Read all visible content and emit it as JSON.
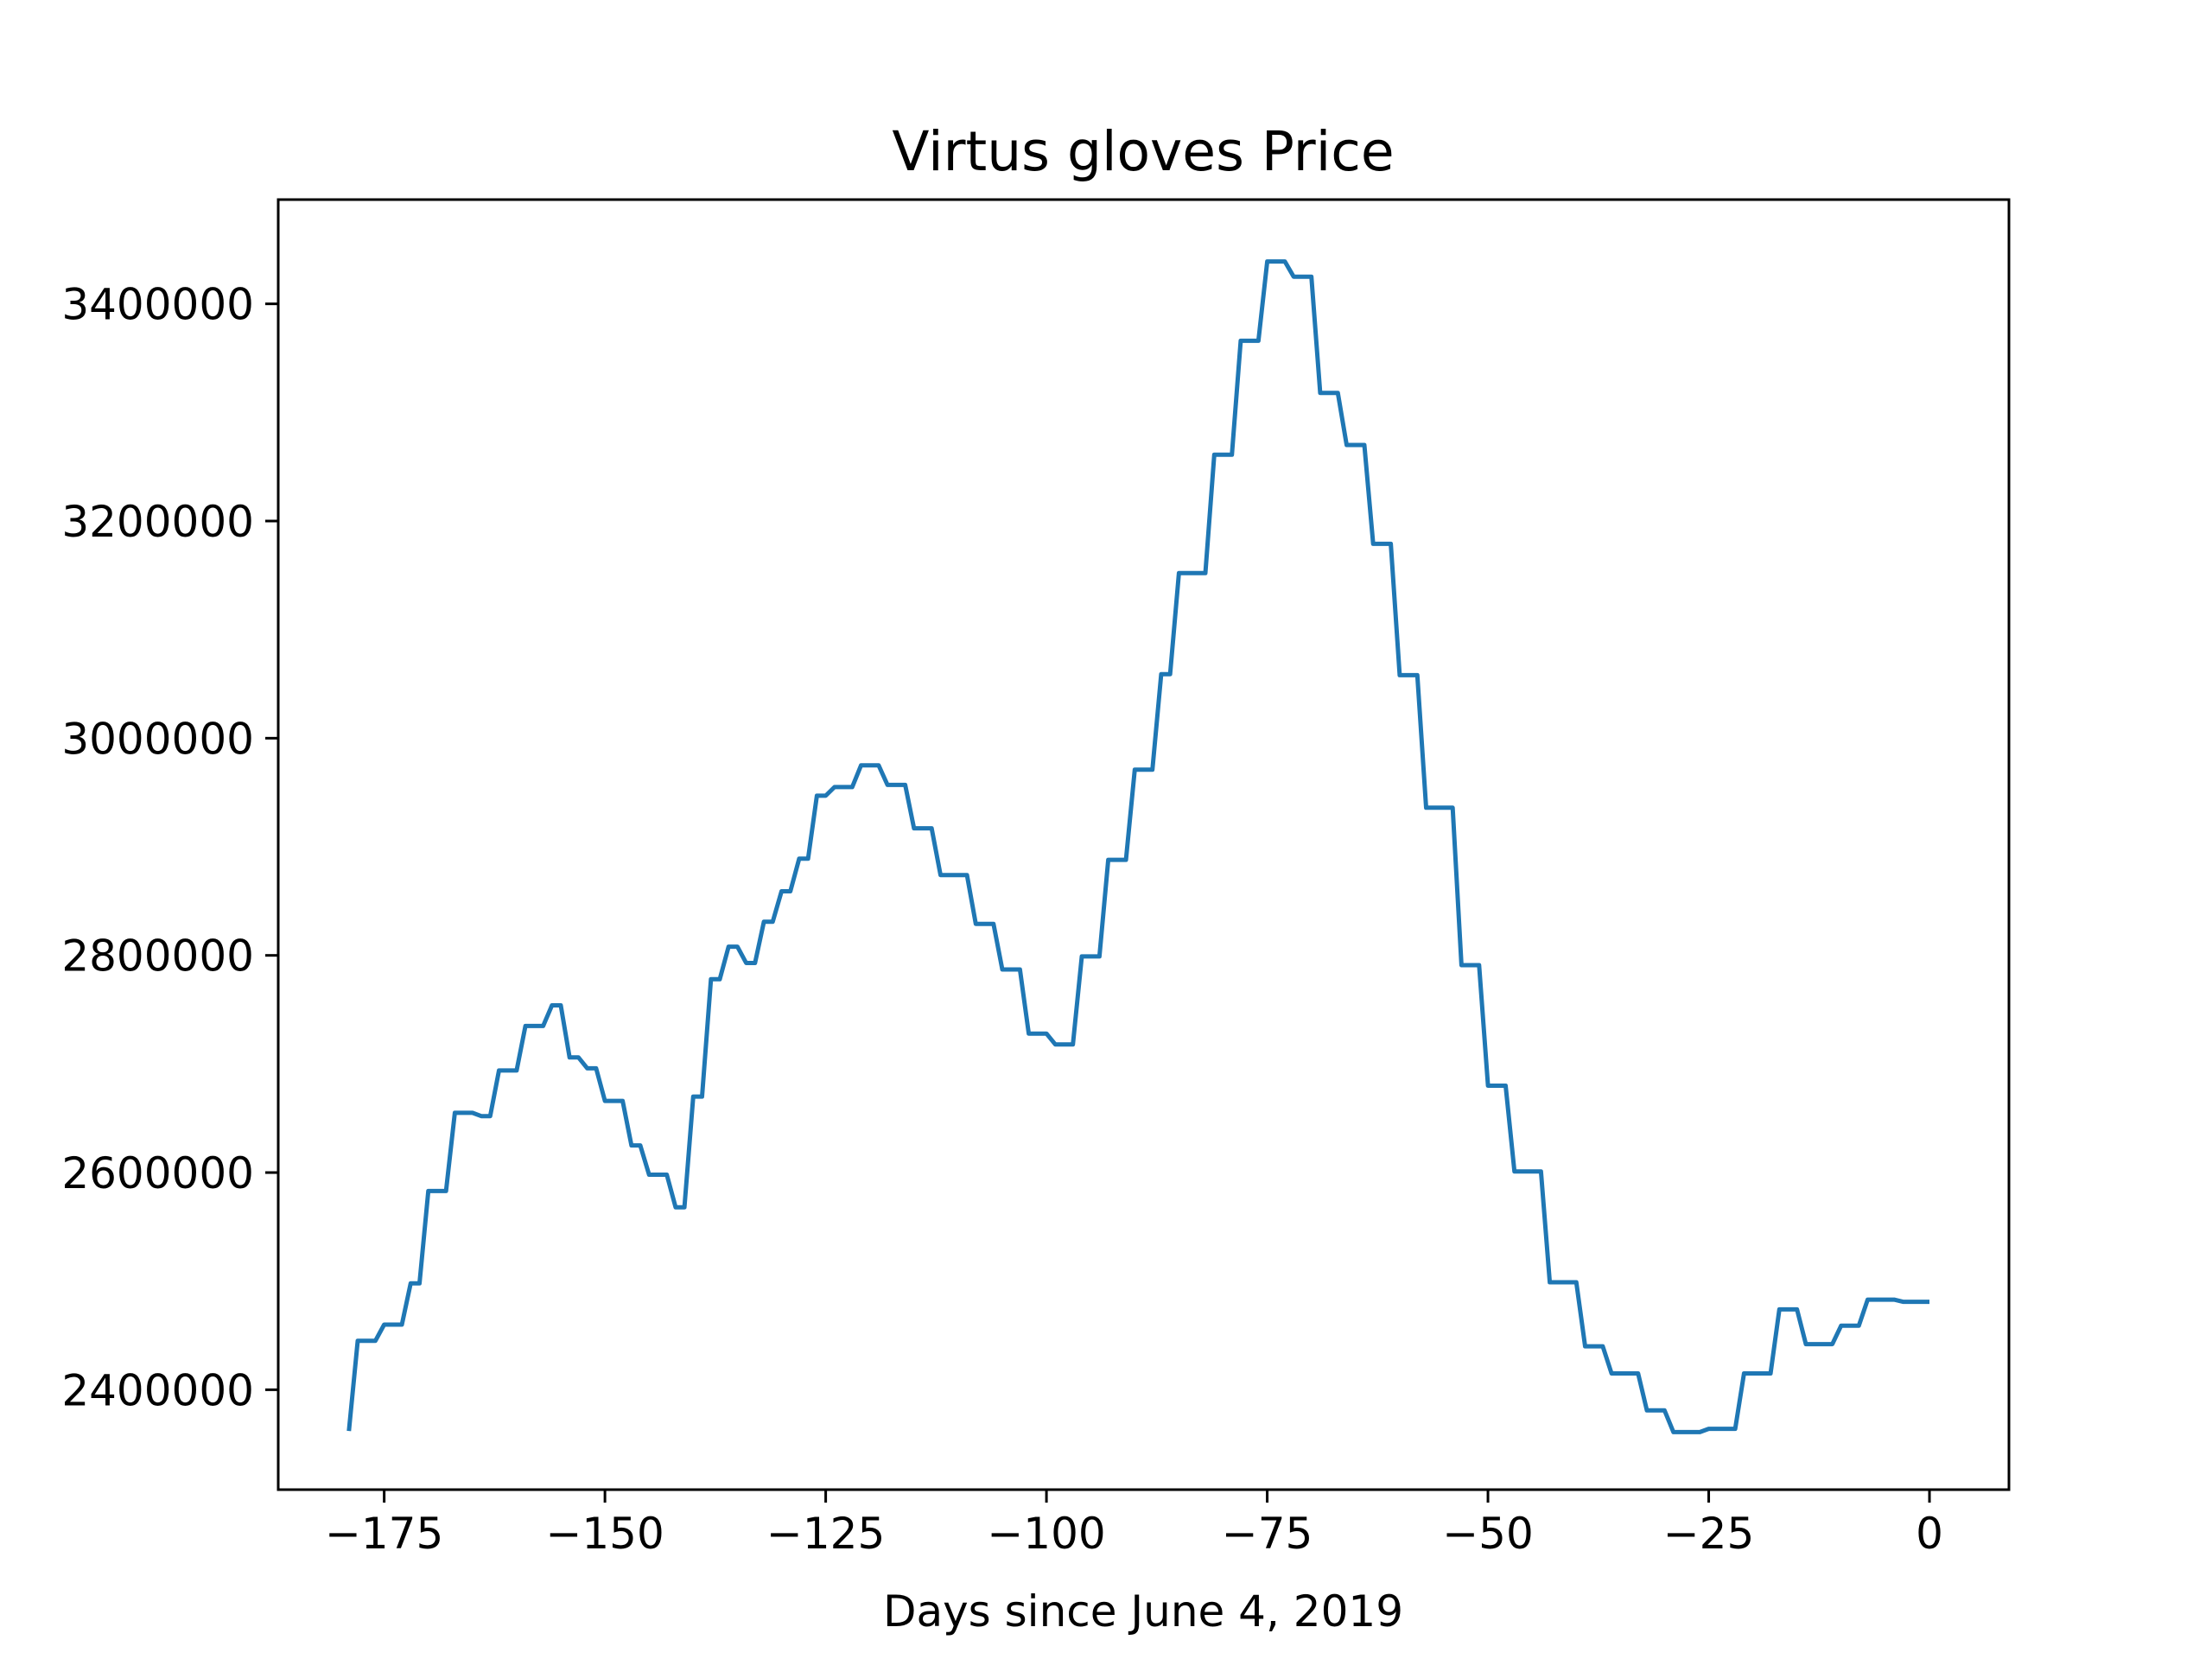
{
  "chart_data": {
    "type": "line",
    "title": "Virtus gloves Price",
    "xlabel": "Days since June 4, 2019",
    "ylabel": "",
    "xlim": [
      -187,
      9
    ],
    "ylim": [
      2308000,
      3496000
    ],
    "xticks": [
      -175,
      -150,
      -125,
      -100,
      -75,
      -50,
      -25,
      0
    ],
    "xtick_labels": [
      "−175",
      "−150",
      "−125",
      "−100",
      "−75",
      "−50",
      "−25",
      "0"
    ],
    "yticks": [
      2400000,
      2600000,
      2800000,
      3000000,
      3200000,
      3400000
    ],
    "ytick_labels": [
      "2400000",
      "2600000",
      "2800000",
      "3000000",
      "3200000",
      "3400000"
    ],
    "grid": false,
    "color": "#1f77b4",
    "series": [
      {
        "x": [
          -179,
          -178,
          -177,
          -176,
          -175,
          -174,
          -173,
          -172,
          -171,
          -170,
          -169,
          -168,
          -167,
          -166,
          -165,
          -164,
          -163,
          -162,
          -161,
          -160,
          -159,
          -158,
          -157,
          -156,
          -155,
          -154,
          -153,
          -152,
          -151,
          -150,
          -149,
          -148,
          -147,
          -146,
          -145,
          -144,
          -143,
          -142,
          -141,
          -140,
          -139,
          -138,
          -137,
          -136,
          -135,
          -134,
          -133,
          -132,
          -131,
          -130,
          -129,
          -128,
          -127,
          -126,
          -125,
          -124,
          -123,
          -122,
          -121,
          -120,
          -119,
          -118,
          -117,
          -116,
          -115,
          -114,
          -113,
          -112,
          -111,
          -110,
          -109,
          -108,
          -107,
          -106,
          -105,
          -104,
          -103,
          -102,
          -101,
          -100,
          -99,
          -98,
          -97,
          -96,
          -95,
          -94,
          -93,
          -92,
          -91,
          -90,
          -89,
          -88,
          -87,
          -86,
          -85,
          -84,
          -83,
          -82,
          -81,
          -80,
          -79,
          -78,
          -77,
          -76,
          -75,
          -74,
          -73,
          -72,
          -71,
          -70,
          -69,
          -68,
          -67,
          -66,
          -65,
          -64,
          -63,
          -62,
          -61,
          -60,
          -59,
          -58,
          -57,
          -56,
          -55,
          -54,
          -53,
          -52,
          -51,
          -50,
          -49,
          -48,
          -47,
          -46,
          -45,
          -44,
          -43,
          -42,
          -41,
          -40,
          -39,
          -38,
          -37,
          -36,
          -35,
          -34,
          -33,
          -32,
          -31,
          -30,
          -29,
          -28,
          -27,
          -26,
          -25,
          -24,
          -23,
          -22,
          -21,
          -20,
          -19,
          -18,
          -17,
          -16,
          -15,
          -14,
          -13,
          -12,
          -11,
          -10,
          -9,
          -8,
          -7,
          -6,
          -5,
          -4,
          -3,
          -2,
          -1,
          0
        ],
        "y": [
          2362000,
          2445000,
          2445000,
          2445000,
          2460000,
          2460000,
          2460000,
          2498000,
          2498000,
          2583000,
          2583000,
          2583000,
          2655000,
          2655000,
          2655000,
          2652000,
          2652000,
          2694000,
          2694000,
          2694000,
          2735000,
          2735000,
          2735000,
          2754000,
          2754000,
          2706000,
          2706000,
          2696000,
          2696000,
          2666000,
          2666000,
          2666000,
          2625000,
          2625000,
          2598000,
          2598000,
          2598000,
          2568000,
          2568000,
          2670000,
          2670000,
          2778000,
          2778000,
          2808000,
          2808000,
          2793000,
          2793000,
          2831000,
          2831000,
          2859000,
          2859000,
          2889000,
          2889000,
          2947000,
          2947000,
          2955000,
          2955000,
          2955000,
          2975000,
          2975000,
          2975000,
          2957000,
          2957000,
          2957000,
          2917000,
          2917000,
          2917000,
          2874000,
          2874000,
          2874000,
          2874000,
          2829000,
          2829000,
          2829000,
          2787000,
          2787000,
          2787000,
          2728000,
          2728000,
          2728000,
          2718000,
          2718000,
          2718000,
          2799000,
          2799000,
          2799000,
          2888000,
          2888000,
          2888000,
          2971000,
          2971000,
          2971000,
          3059000,
          3059000,
          3152000,
          3152000,
          3152000,
          3152000,
          3261000,
          3261000,
          3261000,
          3366000,
          3366000,
          3366000,
          3439000,
          3439000,
          3439000,
          3425000,
          3425000,
          3425000,
          3318000,
          3318000,
          3318000,
          3270000,
          3270000,
          3270000,
          3179000,
          3179000,
          3179000,
          3058000,
          3058000,
          3058000,
          2936000,
          2936000,
          2936000,
          2936000,
          2791000,
          2791000,
          2791000,
          2680000,
          2680000,
          2680000,
          2601000,
          2601000,
          2601000,
          2601000,
          2499000,
          2499000,
          2499000,
          2499000,
          2440000,
          2440000,
          2440000,
          2415000,
          2415000,
          2415000,
          2415000,
          2381000,
          2381000,
          2381000,
          2361000,
          2361000,
          2361000,
          2361000,
          2364000,
          2364000,
          2364000,
          2364000,
          2415000,
          2415000,
          2415000,
          2415000,
          2474000,
          2474000,
          2474000,
          2442000,
          2442000,
          2442000,
          2442000,
          2459000,
          2459000,
          2459000,
          2483000,
          2483000,
          2483000,
          2483000,
          2481000,
          2481000,
          2481000,
          2481000
        ]
      }
    ]
  }
}
